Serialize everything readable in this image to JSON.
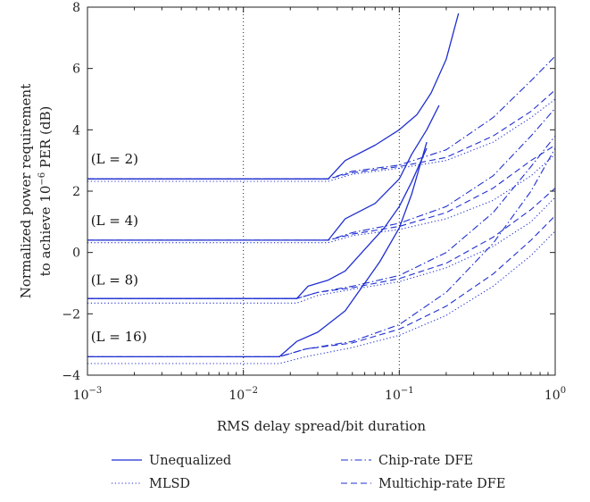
{
  "chart_data": {
    "type": "line",
    "title": "",
    "xlabel": "RMS delay spread/bit duration",
    "ylabel_line1": "Normalized power requirement",
    "ylabel_line2_prefix": "to achieve 10",
    "ylabel_line2_exp": "−6",
    "ylabel_line2_suffix": " PER (dB)",
    "x_scale": "log",
    "xlim": [
      0.001,
      1
    ],
    "ylim": [
      -4,
      8
    ],
    "x_ticks": [
      {
        "base": "10",
        "exp": "−3",
        "value": 0.001
      },
      {
        "base": "10",
        "exp": "−2",
        "value": 0.01
      },
      {
        "base": "10",
        "exp": "−1",
        "value": 0.1
      },
      {
        "base": "10",
        "exp": "0",
        "value": 1
      }
    ],
    "y_ticks": [
      "−4",
      "−2",
      "0",
      "2",
      "4",
      "6",
      "8"
    ],
    "y_tick_values": [
      -4,
      -2,
      0,
      2,
      4,
      6,
      8
    ],
    "vertical_guides": [
      0.01,
      0.1
    ],
    "color": "#1f2fd0",
    "legend": [
      {
        "label": "Unequalized",
        "style": "solid"
      },
      {
        "label": "MLSD",
        "style": "dotted"
      },
      {
        "label": "Chip-rate DFE",
        "style": "dashdot"
      },
      {
        "label": "Multichip-rate DFE",
        "style": "dashed"
      }
    ],
    "groups": [
      {
        "label": "(L = 2)",
        "label_pos": {
          "x": 0.00105,
          "y": 2.9
        },
        "series": [
          {
            "name": "Unequalized",
            "style": "solid",
            "points": [
              [
                0.001,
                2.4
              ],
              [
                0.035,
                2.4
              ],
              [
                0.045,
                3.0
              ],
              [
                0.07,
                3.5
              ],
              [
                0.1,
                4.0
              ],
              [
                0.13,
                4.5
              ],
              [
                0.16,
                5.2
              ],
              [
                0.2,
                6.3
              ],
              [
                0.24,
                7.8
              ]
            ]
          },
          {
            "name": "MLSD",
            "style": "dotted",
            "points": [
              [
                0.001,
                2.32
              ],
              [
                0.035,
                2.32
              ],
              [
                0.05,
                2.55
              ],
              [
                0.1,
                2.75
              ],
              [
                0.2,
                3.0
              ],
              [
                0.4,
                3.6
              ],
              [
                0.7,
                4.4
              ],
              [
                1,
                5.0
              ]
            ]
          },
          {
            "name": "Chip-rate DFE",
            "style": "dashdot",
            "points": [
              [
                0.001,
                2.4
              ],
              [
                0.035,
                2.4
              ],
              [
                0.05,
                2.65
              ],
              [
                0.1,
                2.85
              ],
              [
                0.2,
                3.35
              ],
              [
                0.4,
                4.4
              ],
              [
                0.7,
                5.6
              ],
              [
                1,
                6.4
              ]
            ]
          },
          {
            "name": "Multichip-rate DFE",
            "style": "dashed",
            "points": [
              [
                0.001,
                2.4
              ],
              [
                0.035,
                2.4
              ],
              [
                0.05,
                2.6
              ],
              [
                0.1,
                2.8
              ],
              [
                0.2,
                3.1
              ],
              [
                0.4,
                3.8
              ],
              [
                0.7,
                4.6
              ],
              [
                1,
                5.3
              ]
            ]
          }
        ]
      },
      {
        "label": "(L = 4)",
        "label_pos": {
          "x": 0.00105,
          "y": 0.9
        },
        "series": [
          {
            "name": "Unequalized",
            "style": "solid",
            "points": [
              [
                0.001,
                0.4
              ],
              [
                0.035,
                0.4
              ],
              [
                0.045,
                1.1
              ],
              [
                0.07,
                1.6
              ],
              [
                0.1,
                2.4
              ],
              [
                0.12,
                3.2
              ],
              [
                0.15,
                4.0
              ],
              [
                0.18,
                4.8
              ]
            ]
          },
          {
            "name": "MLSD",
            "style": "dotted",
            "points": [
              [
                0.001,
                0.32
              ],
              [
                0.035,
                0.32
              ],
              [
                0.05,
                0.55
              ],
              [
                0.1,
                0.75
              ],
              [
                0.2,
                1.1
              ],
              [
                0.4,
                1.7
              ],
              [
                0.7,
                2.5
              ],
              [
                1,
                3.2
              ]
            ]
          },
          {
            "name": "Chip-rate DFE",
            "style": "dashdot",
            "points": [
              [
                0.001,
                0.4
              ],
              [
                0.035,
                0.4
              ],
              [
                0.05,
                0.65
              ],
              [
                0.1,
                0.95
              ],
              [
                0.2,
                1.5
              ],
              [
                0.4,
                2.5
              ],
              [
                0.7,
                3.8
              ],
              [
                1,
                4.7
              ]
            ]
          },
          {
            "name": "Multichip-rate DFE",
            "style": "dashed",
            "points": [
              [
                0.001,
                0.4
              ],
              [
                0.035,
                0.4
              ],
              [
                0.05,
                0.6
              ],
              [
                0.1,
                0.85
              ],
              [
                0.2,
                1.3
              ],
              [
                0.4,
                2.1
              ],
              [
                0.7,
                3.0
              ],
              [
                1,
                3.5
              ]
            ]
          }
        ]
      },
      {
        "label": "(L = 8)",
        "label_pos": {
          "x": 0.00105,
          "y": -1.05
        },
        "series": [
          {
            "name": "Unequalized",
            "style": "solid",
            "points": [
              [
                0.001,
                -1.5
              ],
              [
                0.022,
                -1.5
              ],
              [
                0.026,
                -1.1
              ],
              [
                0.035,
                -0.9
              ],
              [
                0.045,
                -0.6
              ],
              [
                0.06,
                0.1
              ],
              [
                0.08,
                0.8
              ],
              [
                0.1,
                1.5
              ],
              [
                0.12,
                2.3
              ],
              [
                0.15,
                3.4
              ]
            ]
          },
          {
            "name": "MLSD",
            "style": "dotted",
            "points": [
              [
                0.001,
                -1.65
              ],
              [
                0.022,
                -1.65
              ],
              [
                0.03,
                -1.4
              ],
              [
                0.05,
                -1.2
              ],
              [
                0.1,
                -0.95
              ],
              [
                0.2,
                -0.5
              ],
              [
                0.4,
                0.2
              ],
              [
                0.7,
                1.0
              ],
              [
                1,
                1.8
              ]
            ]
          },
          {
            "name": "Chip-rate DFE",
            "style": "dashdot",
            "points": [
              [
                0.001,
                -1.5
              ],
              [
                0.022,
                -1.5
              ],
              [
                0.03,
                -1.3
              ],
              [
                0.05,
                -1.1
              ],
              [
                0.1,
                -0.75
              ],
              [
                0.2,
                0.0
              ],
              [
                0.4,
                1.3
              ],
              [
                0.7,
                2.8
              ],
              [
                1,
                3.8
              ]
            ]
          },
          {
            "name": "Multichip-rate DFE",
            "style": "dashed",
            "points": [
              [
                0.001,
                -1.5
              ],
              [
                0.022,
                -1.5
              ],
              [
                0.03,
                -1.3
              ],
              [
                0.05,
                -1.15
              ],
              [
                0.1,
                -0.85
              ],
              [
                0.2,
                -0.35
              ],
              [
                0.4,
                0.5
              ],
              [
                0.7,
                1.4
              ],
              [
                1,
                2.1
              ]
            ]
          }
        ]
      },
      {
        "label": "(L = 16)",
        "label_pos": {
          "x": 0.00105,
          "y": -2.9
        },
        "series": [
          {
            "name": "Unequalized",
            "style": "solid",
            "points": [
              [
                0.001,
                -3.4
              ],
              [
                0.017,
                -3.4
              ],
              [
                0.022,
                -2.9
              ],
              [
                0.03,
                -2.6
              ],
              [
                0.045,
                -1.9
              ],
              [
                0.06,
                -1.0
              ],
              [
                0.075,
                -0.3
              ],
              [
                0.1,
                0.8
              ],
              [
                0.12,
                1.9
              ],
              [
                0.15,
                3.6
              ]
            ]
          },
          {
            "name": "MLSD",
            "style": "dotted",
            "points": [
              [
                0.001,
                -3.62
              ],
              [
                0.017,
                -3.62
              ],
              [
                0.025,
                -3.4
              ],
              [
                0.05,
                -3.1
              ],
              [
                0.1,
                -2.7
              ],
              [
                0.2,
                -2.05
              ],
              [
                0.4,
                -1.1
              ],
              [
                0.7,
                -0.1
              ],
              [
                1,
                0.7
              ]
            ]
          },
          {
            "name": "Chip-rate DFE",
            "style": "dashdot",
            "points": [
              [
                0.001,
                -3.4
              ],
              [
                0.017,
                -3.4
              ],
              [
                0.025,
                -3.15
              ],
              [
                0.05,
                -2.9
              ],
              [
                0.1,
                -2.35
              ],
              [
                0.2,
                -1.3
              ],
              [
                0.4,
                0.3
              ],
              [
                0.7,
                2.0
              ],
              [
                1,
                3.4
              ]
            ]
          },
          {
            "name": "Multichip-rate DFE",
            "style": "dashed",
            "points": [
              [
                0.001,
                -3.4
              ],
              [
                0.017,
                -3.4
              ],
              [
                0.025,
                -3.15
              ],
              [
                0.05,
                -2.95
              ],
              [
                0.1,
                -2.5
              ],
              [
                0.2,
                -1.75
              ],
              [
                0.4,
                -0.7
              ],
              [
                0.7,
                0.4
              ],
              [
                1,
                1.2
              ]
            ]
          }
        ]
      }
    ]
  }
}
